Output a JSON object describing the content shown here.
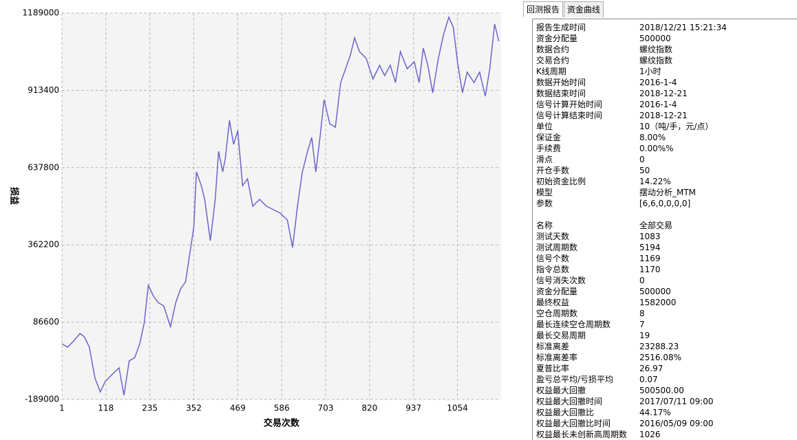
{
  "chart_data": {
    "type": "line",
    "x_label": "交易次数",
    "y_label": "损益",
    "xlim": [
      1,
      1170
    ],
    "xticks": [
      1,
      118,
      235,
      352,
      469,
      586,
      703,
      820,
      937,
      1054
    ],
    "ylim": [
      -189000,
      1189000
    ],
    "yticks": [
      -189000,
      86600,
      362200,
      637800,
      913400,
      1189000
    ],
    "grid": true,
    "series": [
      {
        "name": "损益",
        "color": "#6a63cc",
        "x": [
          1,
          16,
          34,
          49,
          61,
          74,
          89,
          103,
          116,
          134,
          153,
          166,
          180,
          195,
          208,
          220,
          231,
          244,
          257,
          272,
          290,
          304,
          317,
          330,
          341,
          352,
          359,
          372,
          381,
          396,
          409,
          418,
          429,
          436,
          447,
          458,
          469,
          482,
          495,
          509,
          527,
          546,
          564,
          582,
          601,
          615,
          628,
          641,
          655,
          666,
          677,
          688,
          699,
          714,
          729,
          743,
          756,
          769,
          780,
          793,
          811,
          829,
          847,
          860,
          875,
          889,
          902,
          920,
          939,
          952,
          963,
          975,
          988,
          1003,
          1017,
          1031,
          1043,
          1054,
          1067,
          1080,
          1098,
          1113,
          1128,
          1140,
          1153,
          1164
        ],
        "values": [
          9600,
          -2700,
          21800,
          46400,
          34100,
          -2700,
          -113000,
          -162000,
          -125300,
          -100800,
          -76200,
          -174300,
          -51700,
          -39500,
          9600,
          83100,
          218000,
          181200,
          156700,
          144400,
          70900,
          156700,
          205700,
          230300,
          328300,
          426400,
          622600,
          573500,
          524500,
          377400,
          524500,
          696100,
          622600,
          671600,
          806500,
          720700,
          769700,
          573500,
          598100,
          500000,
          524500,
          500000,
          487700,
          475500,
          450900,
          352900,
          500000,
          622600,
          696100,
          745200,
          622600,
          745200,
          880000,
          794200,
          782000,
          941300,
          990400,
          1039400,
          1100700,
          1051700,
          1027200,
          953600,
          1002600,
          965900,
          1002600,
          941300,
          1051700,
          990400,
          1014900,
          941300,
          1063900,
          1002600,
          904600,
          1027200,
          1113000,
          1174300,
          1137500,
          1014900,
          904600,
          978100,
          941300,
          978100,
          892300,
          990400,
          1149800,
          1088500
        ]
      }
    ]
  },
  "tabs": [
    "回测报告",
    "资金曲线"
  ],
  "report": {
    "section1": [
      [
        "报告生成时间",
        "2018/12/21 15:21:34"
      ],
      [
        "资金分配量",
        "500000"
      ],
      [
        "数据合约",
        "螺纹指数"
      ],
      [
        "交易合约",
        "螺纹指数"
      ],
      [
        "K线周期",
        "1小时"
      ],
      [
        "数据开始时间",
        "2016-1-4"
      ],
      [
        "数据结束时间",
        "2018-12-21"
      ],
      [
        "信号计算开始时间",
        "2016-1-4"
      ],
      [
        "信号计算结束时间",
        "2018-12-21"
      ],
      [
        "单位",
        "10（吨/手，元/点）"
      ],
      [
        "保证金",
        "8.00%"
      ],
      [
        "手续费",
        "0.00%%"
      ],
      [
        "滑点",
        "0"
      ],
      [
        "开仓手数",
        "50"
      ],
      [
        "初始资金比例",
        "14.22%"
      ],
      [
        "模型",
        "摆动分析_MTM"
      ],
      [
        "参数",
        "[6,6,0,0,0,0]"
      ]
    ],
    "section2": [
      [
        "名称",
        "全部交易"
      ],
      [
        "测试天数",
        "1083"
      ],
      [
        "测试周期数",
        "5194"
      ],
      [
        "信号个数",
        "1169"
      ],
      [
        "指令总数",
        "1170"
      ],
      [
        "信号消失次数",
        "0"
      ],
      [
        "资金分配量",
        "500000"
      ],
      [
        "最终权益",
        "1582000"
      ],
      [
        "空仓周期数",
        "8"
      ],
      [
        "最长连续空仓周期数",
        "7"
      ],
      [
        "最长交易周期",
        "19"
      ],
      [
        "标准离差",
        "23288.23"
      ],
      [
        "标准离差率",
        "2516.08%"
      ],
      [
        "夏普比率",
        "26.97"
      ],
      [
        "盈亏总平均/亏损平均",
        "0.07"
      ],
      [
        "权益最大回撤",
        "500500.00"
      ],
      [
        "权益最大回撤时间",
        "2017/07/11 09:00"
      ],
      [
        "权益最大回撤比",
        "44.17%"
      ],
      [
        "权益最大回撤比时间",
        "2016/05/09 09:00"
      ],
      [
        "权益最长未创新高周期数",
        "1026"
      ]
    ]
  }
}
